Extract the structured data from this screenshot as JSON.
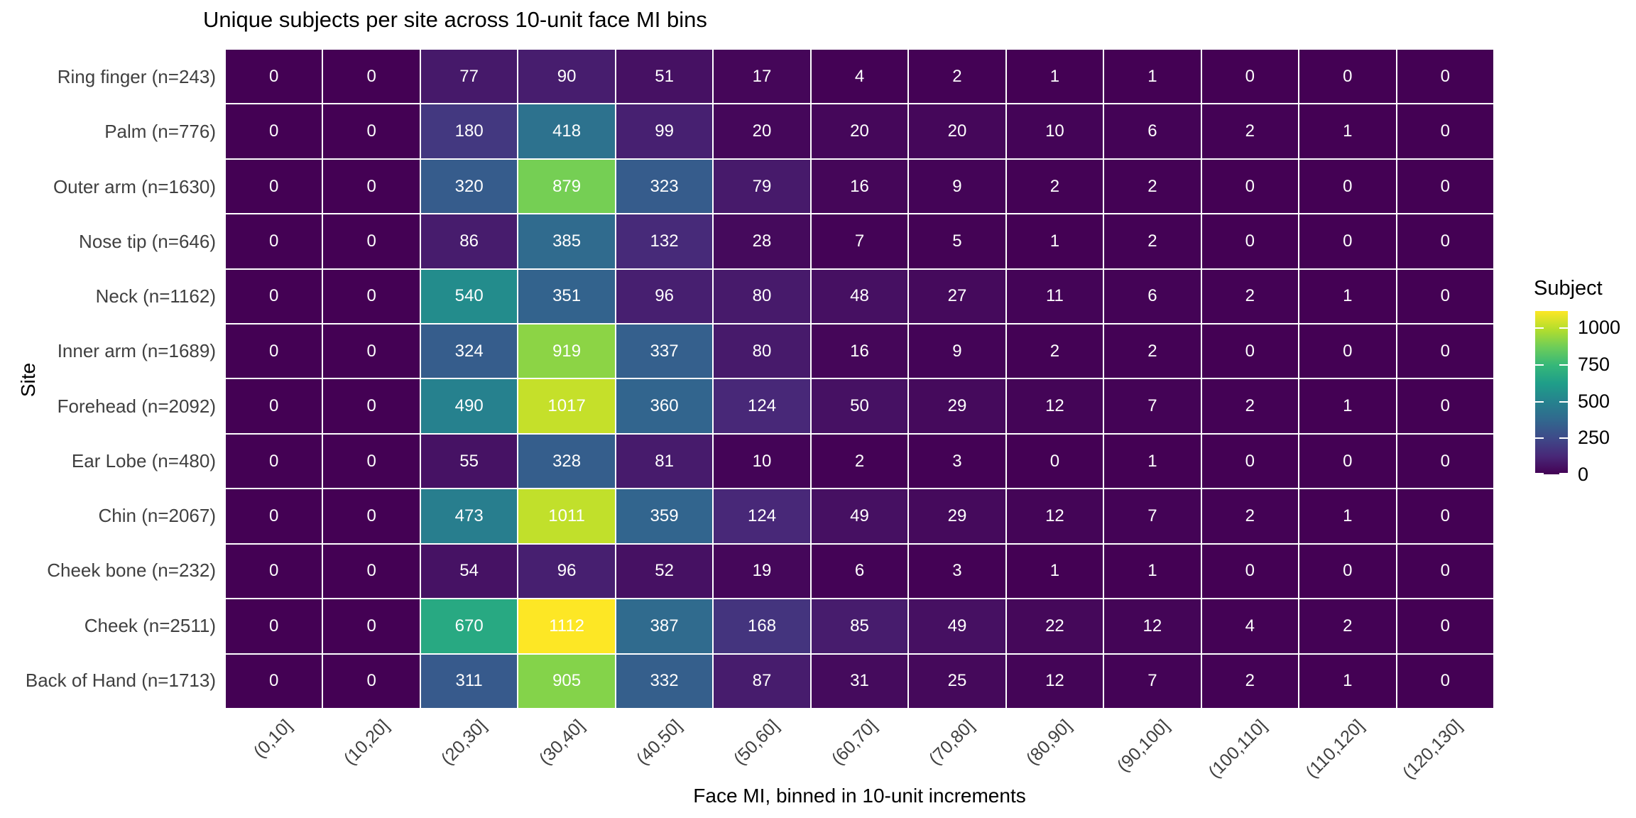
{
  "title": "Unique subjects per site across 10-unit face MI bins",
  "x_axis": {
    "label": "Face MI, binned in 10-unit increments"
  },
  "y_axis": {
    "label": "Site"
  },
  "legend": {
    "title": "Subject",
    "ticks": [
      {
        "value": 1000,
        "label": "1000"
      },
      {
        "value": 750,
        "label": "750"
      },
      {
        "value": 500,
        "label": "500"
      },
      {
        "value": 250,
        "label": "250"
      },
      {
        "value": 0,
        "label": "0"
      }
    ]
  },
  "chart_data": {
    "type": "heatmap",
    "title": "Unique subjects per site across 10-unit face MI bins",
    "xlabel": "Face MI, binned in 10-unit increments",
    "ylabel": "Site",
    "legend_title": "Subject",
    "colorscale": "viridis",
    "color_domain": [
      0,
      1112
    ],
    "viridis_anchors": [
      "#440154",
      "#482878",
      "#3E4A89",
      "#31688E",
      "#26828E",
      "#1F9E89",
      "#35B779",
      "#6DCD59",
      "#B4DE2C",
      "#FDE725"
    ],
    "grid_line_color": "#ffffff",
    "categories": [
      "(0,10]",
      "(10,20]",
      "(20,30]",
      "(30,40]",
      "(40,50]",
      "(50,60]",
      "(60,70]",
      "(70,80]",
      "(80,90]",
      "(90,100]",
      "(100,110]",
      "(110,120]",
      "(120,130]"
    ],
    "rows": [
      {
        "label": "Ring finger (n=243)",
        "values": [
          0,
          0,
          77,
          90,
          51,
          17,
          4,
          2,
          1,
          1,
          0,
          0,
          0
        ]
      },
      {
        "label": "Palm (n=776)",
        "values": [
          0,
          0,
          180,
          418,
          99,
          20,
          20,
          20,
          10,
          6,
          2,
          1,
          0
        ]
      },
      {
        "label": "Outer arm (n=1630)",
        "values": [
          0,
          0,
          320,
          879,
          323,
          79,
          16,
          9,
          2,
          2,
          0,
          0,
          0
        ]
      },
      {
        "label": "Nose tip (n=646)",
        "values": [
          0,
          0,
          86,
          385,
          132,
          28,
          7,
          5,
          1,
          2,
          0,
          0,
          0
        ]
      },
      {
        "label": "Neck (n=1162)",
        "values": [
          0,
          0,
          540,
          351,
          96,
          80,
          48,
          27,
          11,
          6,
          2,
          1,
          0
        ]
      },
      {
        "label": "Inner arm (n=1689)",
        "values": [
          0,
          0,
          324,
          919,
          337,
          80,
          16,
          9,
          2,
          2,
          0,
          0,
          0
        ]
      },
      {
        "label": "Forehead (n=2092)",
        "values": [
          0,
          0,
          490,
          1017,
          360,
          124,
          50,
          29,
          12,
          7,
          2,
          1,
          0
        ]
      },
      {
        "label": "Ear Lobe (n=480)",
        "values": [
          0,
          0,
          55,
          328,
          81,
          10,
          2,
          3,
          0,
          1,
          0,
          0,
          0
        ]
      },
      {
        "label": "Chin (n=2067)",
        "values": [
          0,
          0,
          473,
          1011,
          359,
          124,
          49,
          29,
          12,
          7,
          2,
          1,
          0
        ]
      },
      {
        "label": "Cheek bone (n=232)",
        "values": [
          0,
          0,
          54,
          96,
          52,
          19,
          6,
          3,
          1,
          1,
          0,
          0,
          0
        ]
      },
      {
        "label": "Cheek (n=2511)",
        "values": [
          0,
          0,
          670,
          1112,
          387,
          168,
          85,
          49,
          22,
          12,
          4,
          2,
          0
        ]
      },
      {
        "label": "Back of Hand (n=1713)",
        "values": [
          0,
          0,
          311,
          905,
          332,
          87,
          31,
          25,
          12,
          7,
          2,
          1,
          0
        ]
      }
    ]
  }
}
